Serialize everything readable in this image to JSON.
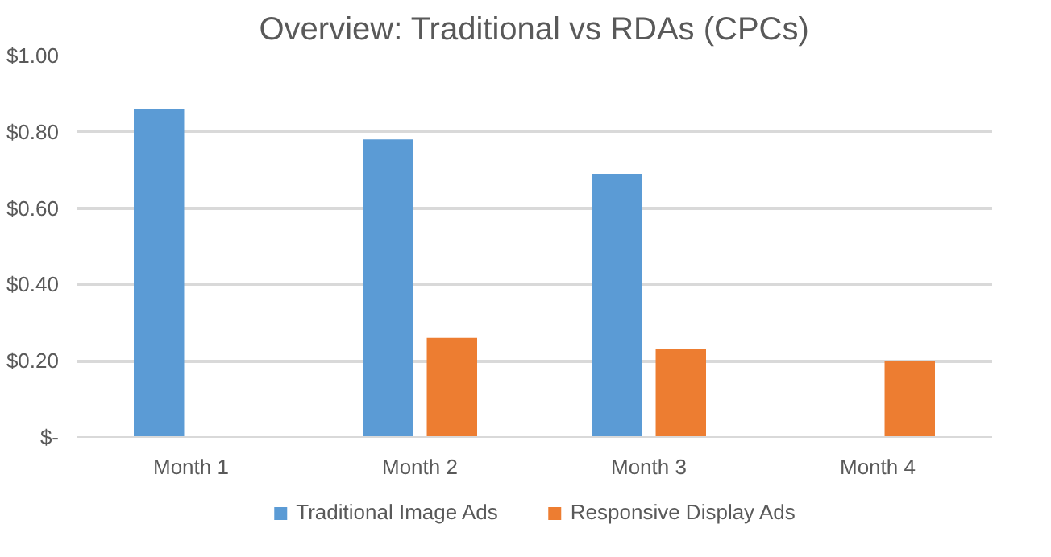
{
  "chart_data": {
    "type": "bar",
    "title": "Overview: Traditional vs RDAs (CPCs)",
    "categories": [
      "Month 1",
      "Month 2",
      "Month 3",
      "Month 4"
    ],
    "series": [
      {
        "name": "Traditional Image Ads",
        "color": "#5b9bd5",
        "values": [
          0.86,
          0.78,
          0.69,
          null
        ]
      },
      {
        "name": "Responsive Display Ads",
        "color": "#ed7d31",
        "values": [
          null,
          0.26,
          0.23,
          0.2
        ]
      }
    ],
    "ylim": [
      0,
      1.0
    ],
    "yticks": [
      {
        "value": 0,
        "label": "$-"
      },
      {
        "value": 0.2,
        "label": "$0.20"
      },
      {
        "value": 0.4,
        "label": "$0.40"
      },
      {
        "value": 0.6,
        "label": "$0.60"
      },
      {
        "value": 0.8,
        "label": "$0.80"
      },
      {
        "value": 1.0,
        "label": "$1.00"
      }
    ],
    "grid": "y",
    "legend": "bottom"
  }
}
